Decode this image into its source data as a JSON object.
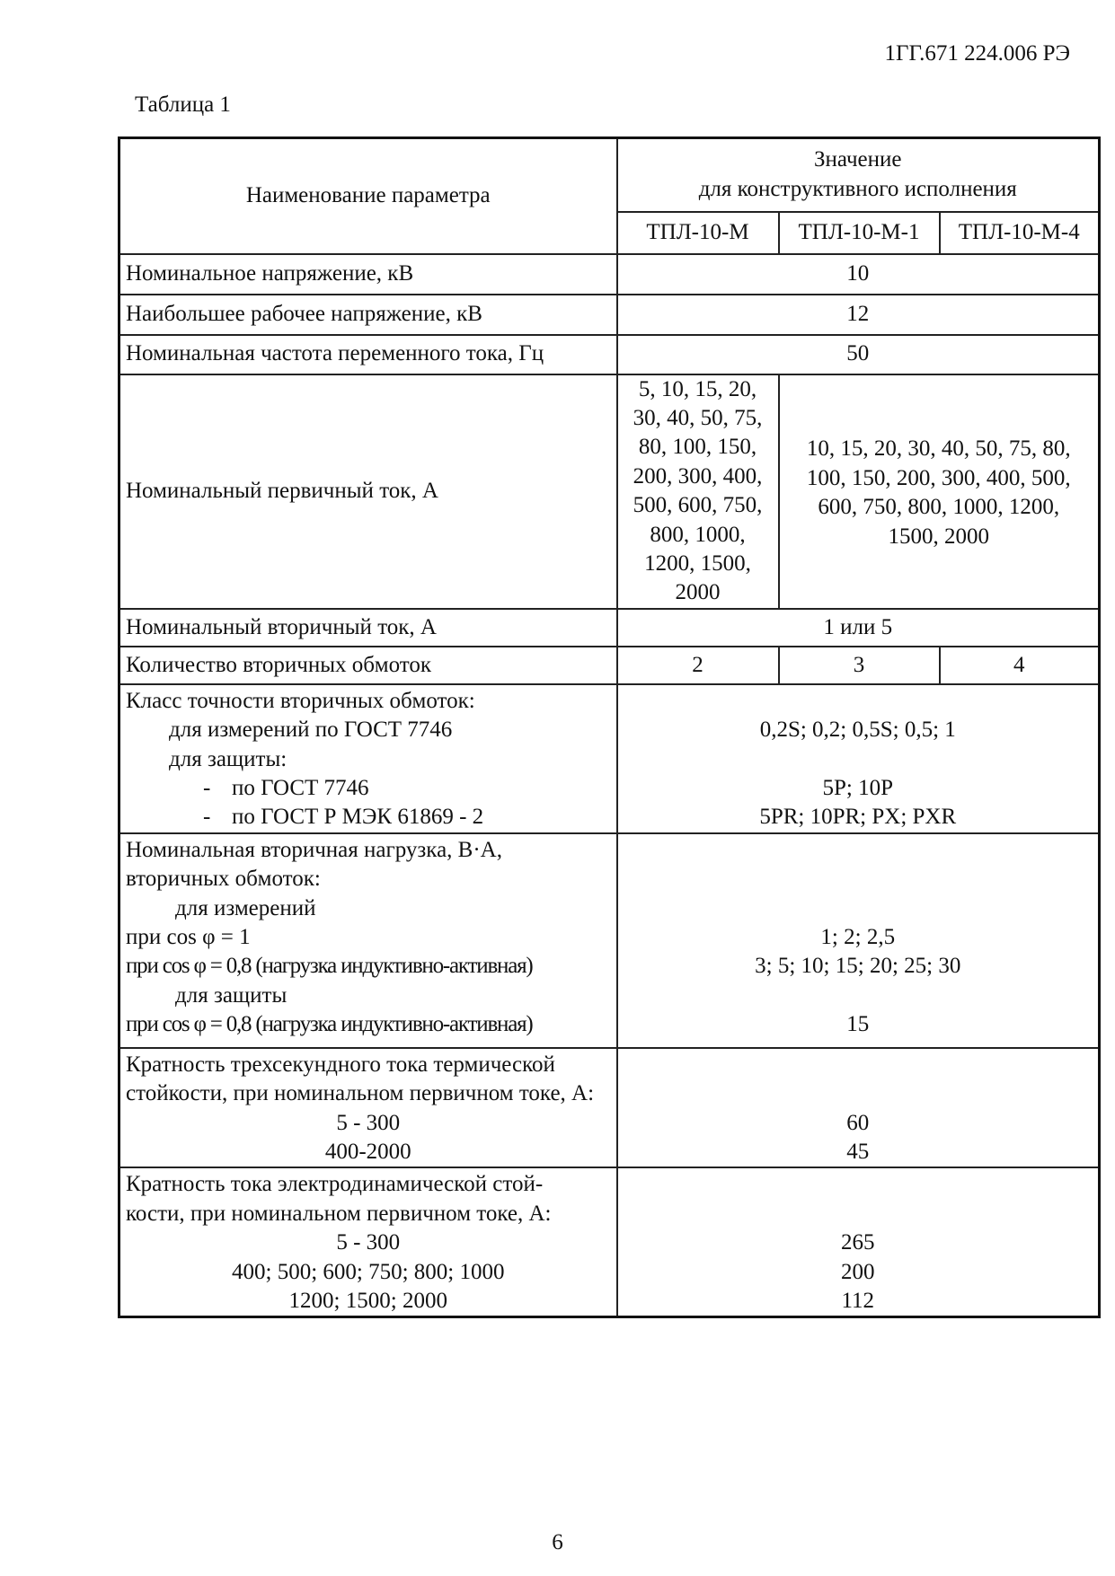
{
  "header": {
    "doc_code": "1ГГ.671 224.006 РЭ",
    "table_caption": "Таблица 1"
  },
  "table": {
    "col_param": "Наименование параметра",
    "col_value": [
      "Значение",
      "для конструктивного исполнения"
    ],
    "variants": [
      "ТПЛ-10-М",
      "ТПЛ-10-М-1",
      "ТПЛ-10-М-4"
    ],
    "rows": {
      "voltage": {
        "param": "Номинальное напряжение, кВ",
        "value": "10"
      },
      "max_voltage": {
        "param": "Наибольшее рабочее напряжение, кВ",
        "value": "12"
      },
      "frequency": {
        "param": "Номинальная частота переменного тока, Гц",
        "value": "50"
      },
      "primary_current": {
        "param": "Номинальный первичный ток, А",
        "m": [
          "5, 10, 15, 20,",
          "30, 40, 50, 75,",
          "80, 100, 150,",
          "200, 300, 400,",
          "500,  600, 750,",
          "800, 1000,",
          "1200, 1500,",
          "2000"
        ],
        "m1_m4": [
          "10, 15, 20, 30, 40, 50, 75, 80,",
          "100, 150, 200, 300, 400, 500,",
          "600, 750, 800, 1000, 1200,",
          "1500, 2000"
        ]
      },
      "secondary_current": {
        "param": "Номинальный вторичный ток, А",
        "value": "1 или 5"
      },
      "windings": {
        "param": "Количество вторичных обмоток",
        "values": [
          "2",
          "3",
          "4"
        ]
      },
      "accuracy": {
        "param": [
          "Класс точности вторичных обмоток:",
          "для измерений по ГОСТ 7746",
          "для защиты:",
          "по ГОСТ 7746",
          "по ГОСТ Р МЭК 61869 - 2"
        ],
        "dash": "-",
        "values": [
          "0,2S; 0,2; 0,5S; 0,5; 1",
          "5P; 10P",
          "5PR; 10PR; PX; PXR"
        ]
      },
      "load": {
        "param": [
          "Номинальная вторичная нагрузка, В·А,",
          "вторичных обмоток:",
          "для измерений",
          "при cos φ = 1",
          "при cos φ = 0,8 (нагрузка индуктивно-активная)",
          "для защиты",
          "при cos φ = 0,8 (нагрузка индуктивно-активная)"
        ],
        "values": [
          "1; 2; 2,5",
          "3; 5; 10; 15; 20; 25; 30",
          "15"
        ]
      },
      "thermal": {
        "param": [
          "Кратность трехсекундного тока термической",
          "стойкости, при номинальном первичном токе, А:",
          "5 - 300",
          "400-2000"
        ],
        "values": [
          "60",
          "45"
        ]
      },
      "dynamic": {
        "param": [
          "Кратность тока электродинамической стой-",
          "кости, при номинальном первичном токе, А:",
          "5 - 300",
          "400; 500; 600; 750; 800; 1000",
          "1200; 1500; 2000"
        ],
        "values": [
          "265",
          "200",
          "112"
        ]
      }
    }
  },
  "footer": {
    "page_number": "6"
  }
}
